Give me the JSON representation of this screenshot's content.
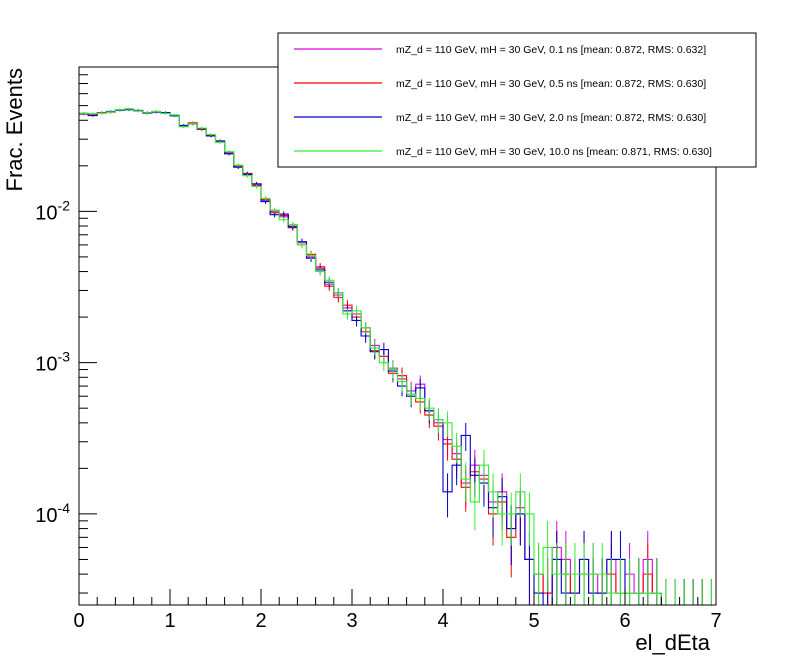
{
  "chart_data": {
    "type": "line",
    "xlabel": "el_dEta",
    "ylabel": "Frac. Events",
    "xlim": [
      0,
      7
    ],
    "ylim": [
      2.5e-05,
      0.09
    ],
    "yscale": "log",
    "grid": false,
    "legend_position": "top-right",
    "x_ticks": [
      {
        "value": 0,
        "label": "0"
      },
      {
        "value": 1,
        "label": "1"
      },
      {
        "value": 2,
        "label": "2"
      },
      {
        "value": 3,
        "label": "3"
      },
      {
        "value": 4,
        "label": "4"
      },
      {
        "value": 5,
        "label": "5"
      },
      {
        "value": 6,
        "label": "6"
      },
      {
        "value": 7,
        "label": "7"
      }
    ],
    "y_ticks": [
      {
        "value": 0.01,
        "base": "10",
        "exp": "-2"
      },
      {
        "value": 0.001,
        "base": "10",
        "exp": "-3"
      },
      {
        "value": 0.0001,
        "base": "10",
        "exp": "-4"
      }
    ],
    "series": [
      {
        "name": "mZ_d = 110 GeV, mH = 30 GeV, 0.1 ns [mean: 0.872, RMS: 0.632]",
        "color": "#e000e0",
        "bin_width": 0.1,
        "x_start": 0,
        "values": [
          0.0445,
          0.044,
          0.0448,
          0.0455,
          0.0468,
          0.0475,
          0.0462,
          0.045,
          0.0458,
          0.0445,
          0.0432,
          0.0365,
          0.0382,
          0.035,
          0.0318,
          0.029,
          0.0245,
          0.0198,
          0.0175,
          0.0148,
          0.0118,
          0.01,
          0.0092,
          0.008,
          0.0062,
          0.005,
          0.0042,
          0.0033,
          0.0028,
          0.0023,
          0.0021,
          0.0017,
          0.0013,
          0.0011,
          0.00092,
          0.00078,
          0.00065,
          0.00072,
          0.00048,
          0.0004,
          0.00031,
          0.00025,
          0.00016,
          0.00021,
          0.00018,
          0.00012,
          0.00014,
          8e-05,
          0.00011,
          5e-05,
          4e-05,
          3e-05,
          6e-05,
          5e-05,
          3e-05,
          5e-05,
          4e-05,
          3e-05,
          5e-05,
          3e-05,
          4e-05,
          3e-05,
          5e-05,
          3e-05,
          2e-05,
          2e-05,
          2e-05,
          2e-05,
          2e-05,
          2e-05
        ]
      },
      {
        "name": "mZ_d = 110 GeV, mH = 30 GeV, 0.5 ns [mean: 0.872, RMS: 0.630]",
        "color": "#ff0000",
        "bin_width": 0.1,
        "x_start": 0,
        "values": [
          0.044,
          0.0438,
          0.045,
          0.0452,
          0.047,
          0.0472,
          0.046,
          0.0448,
          0.0455,
          0.0447,
          0.043,
          0.0368,
          0.0385,
          0.0348,
          0.032,
          0.0288,
          0.0242,
          0.02,
          0.0178,
          0.015,
          0.012,
          0.0098,
          0.0094,
          0.0078,
          0.006,
          0.0052,
          0.0043,
          0.0032,
          0.0027,
          0.0024,
          0.002,
          0.0016,
          0.0012,
          0.0011,
          0.00085,
          0.00082,
          0.00062,
          0.00055,
          0.00045,
          0.00038,
          0.00029,
          0.00023,
          0.00015,
          0.00019,
          0.00017,
          0.0001,
          0.00012,
          7e-05,
          0.0001,
          5e-05,
          4e-05,
          3e-05,
          5e-05,
          4e-05,
          3e-05,
          4e-05,
          3e-05,
          3e-05,
          4e-05,
          3e-05,
          3e-05,
          3e-05,
          4e-05,
          3e-05,
          2e-05,
          2e-05,
          2e-05,
          2e-05,
          2e-05,
          2e-05
        ]
      },
      {
        "name": "mZ_d = 110 GeV, mH = 30 GeV, 2.0 ns [mean: 0.872, RMS: 0.630]",
        "color": "#0000cc",
        "bin_width": 0.1,
        "x_start": 0,
        "values": [
          0.0442,
          0.043,
          0.0446,
          0.0458,
          0.0466,
          0.047,
          0.0465,
          0.0445,
          0.0452,
          0.045,
          0.0428,
          0.037,
          0.0378,
          0.0352,
          0.0315,
          0.0292,
          0.024,
          0.0196,
          0.0176,
          0.0152,
          0.0116,
          0.0095,
          0.0096,
          0.0079,
          0.0063,
          0.0049,
          0.0041,
          0.0034,
          0.0029,
          0.0022,
          0.0019,
          0.0015,
          0.00118,
          0.00122,
          0.00088,
          0.0007,
          0.0006,
          0.00068,
          0.00048,
          0.00042,
          0.00014,
          0.00021,
          0.00033,
          0.00018,
          0.00016,
          0.00011,
          0.00013,
          8e-05,
          0.0001,
          5e-05,
          3e-05,
          2e-05,
          5e-05,
          3e-05,
          3e-05,
          5e-05,
          3e-05,
          3e-05,
          5e-05,
          5e-05,
          3e-05,
          3e-05,
          3e-05,
          3e-05,
          2e-05,
          2e-05,
          2e-05,
          2e-05,
          2e-05,
          2e-05
        ]
      },
      {
        "name": "mZ_d = 110 GeV, mH = 30 GeV, 10.0 ns [mean: 0.871, RMS: 0.630]",
        "color": "#33ee33",
        "bin_width": 0.1,
        "x_start": 0,
        "values": [
          0.0445,
          0.0442,
          0.0446,
          0.0454,
          0.0471,
          0.0476,
          0.0461,
          0.0447,
          0.0457,
          0.0444,
          0.0434,
          0.0362,
          0.038,
          0.0355,
          0.0322,
          0.0286,
          0.0248,
          0.0202,
          0.0172,
          0.0146,
          0.0122,
          0.0102,
          0.0088,
          0.0082,
          0.006,
          0.0051,
          0.004,
          0.0035,
          0.0029,
          0.0021,
          0.0022,
          0.0017,
          0.00125,
          0.001,
          0.0009,
          0.00075,
          0.00062,
          0.00058,
          0.0005,
          0.00042,
          0.0004,
          0.00028,
          0.00017,
          0.00012,
          0.00021,
          0.00014,
          0.0001,
          0.0001,
          0.00014,
          0.0001,
          4e-05,
          6e-05,
          4e-05,
          4e-05,
          4e-05,
          4e-05,
          4e-05,
          4e-05,
          3e-05,
          3e-05,
          3e-05,
          3e-05,
          3e-05,
          3e-05,
          2e-05,
          2e-05,
          2e-05,
          2e-05,
          2e-05,
          2e-05
        ]
      }
    ]
  }
}
